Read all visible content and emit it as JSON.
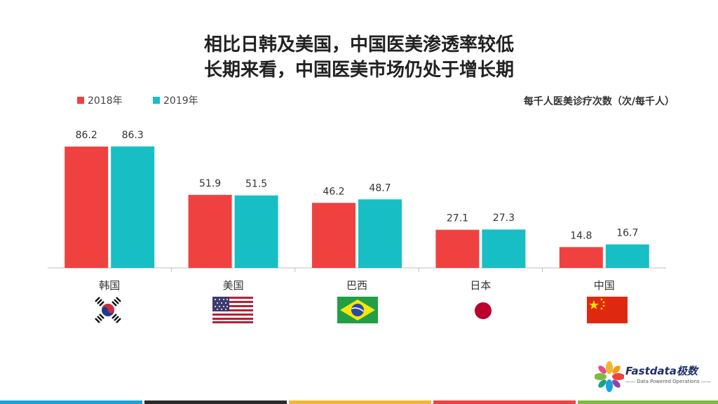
{
  "title_lines": [
    "相比日韩及美国，中国医美渗透率较低",
    "长期来看，中国医美市场仍处于增长期"
  ],
  "unit_label": "每千人医美诊疗次数（次/每千人）",
  "colors": {
    "series_2018": "#f04141",
    "series_2019": "#17bec4",
    "axis": "#bfbfbf"
  },
  "chart_data": {
    "type": "bar",
    "title": "相比日韩及美国，中国医美渗透率较低 长期来看，中国医美市场仍处于增长期",
    "categories": [
      "韩国",
      "美国",
      "巴西",
      "日本",
      "中国"
    ],
    "series": [
      {
        "name": "2018年",
        "values": [
          86.2,
          51.9,
          46.2,
          27.1,
          14.8
        ]
      },
      {
        "name": "2019年",
        "values": [
          86.3,
          51.5,
          48.7,
          27.3,
          16.7
        ]
      }
    ],
    "ylabel": "每千人医美诊疗次数（次/每千人）",
    "xlabel": "",
    "ylim": [
      0,
      100
    ],
    "grid": false,
    "legend": "top-left"
  },
  "flags": [
    "south-korea-flag",
    "usa-flag",
    "brazil-flag",
    "japan-flag",
    "china-flag"
  ],
  "logo": {
    "name": "Fastdata极数",
    "tagline": "—— Data Powered Operations ——"
  },
  "footer_colors": [
    "#1aa3d9",
    "#2b2b2b",
    "#f2b632",
    "#f04141",
    "#7dbb42"
  ]
}
